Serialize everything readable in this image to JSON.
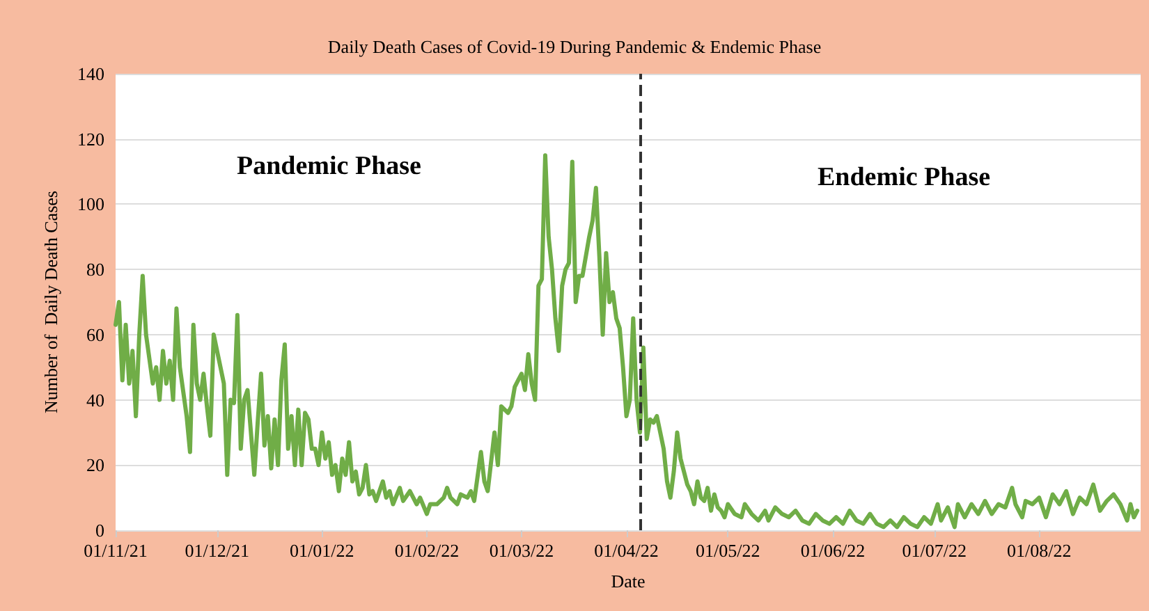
{
  "chart_data": {
    "type": "line",
    "title": "Daily Death Cases of Covid-19 During Pandemic & Endemic Phase",
    "xlabel": "Date",
    "ylabel": "Number of  Daily Death Cases",
    "x": [
      "2021-11-01",
      "2021-11-02",
      "2021-11-03",
      "2021-11-04",
      "2021-11-05",
      "2021-11-06",
      "2021-11-07",
      "2021-11-08",
      "2021-11-09",
      "2021-11-10",
      "2021-11-12",
      "2021-11-13",
      "2021-11-14",
      "2021-11-15",
      "2021-11-16",
      "2021-11-17",
      "2021-11-18",
      "2021-11-19",
      "2021-11-20",
      "2021-11-22",
      "2021-11-23",
      "2021-11-24",
      "2021-11-25",
      "2021-11-26",
      "2021-11-27",
      "2021-11-28",
      "2021-11-29",
      "2021-11-30",
      "2021-12-02",
      "2021-12-03",
      "2021-12-04",
      "2021-12-05",
      "2021-12-06",
      "2021-12-07",
      "2021-12-08",
      "2021-12-09",
      "2021-12-10",
      "2021-12-11",
      "2021-12-12",
      "2021-12-13",
      "2021-12-14",
      "2021-12-15",
      "2021-12-16",
      "2021-12-17",
      "2021-12-18",
      "2021-12-19",
      "2021-12-20",
      "2021-12-21",
      "2021-12-22",
      "2021-12-23",
      "2021-12-24",
      "2021-12-25",
      "2021-12-26",
      "2021-12-27",
      "2021-12-28",
      "2021-12-29",
      "2021-12-30",
      "2021-12-31",
      "2022-01-01",
      "2022-01-02",
      "2022-01-03",
      "2022-01-04",
      "2022-01-05",
      "2022-01-06",
      "2022-01-07",
      "2022-01-08",
      "2022-01-09",
      "2022-01-10",
      "2022-01-11",
      "2022-01-12",
      "2022-01-13",
      "2022-01-14",
      "2022-01-15",
      "2022-01-16",
      "2022-01-17",
      "2022-01-18",
      "2022-01-19",
      "2022-01-20",
      "2022-01-21",
      "2022-01-22",
      "2022-01-24",
      "2022-01-25",
      "2022-01-27",
      "2022-01-29",
      "2022-01-30",
      "2022-02-01",
      "2022-02-02",
      "2022-02-04",
      "2022-02-06",
      "2022-02-07",
      "2022-02-08",
      "2022-02-10",
      "2022-02-11",
      "2022-02-13",
      "2022-02-14",
      "2022-02-15",
      "2022-02-17",
      "2022-02-18",
      "2022-02-19",
      "2022-02-21",
      "2022-02-22",
      "2022-02-23",
      "2022-02-25",
      "2022-02-26",
      "2022-02-27",
      "2022-02-28",
      "2022-03-01",
      "2022-03-02",
      "2022-03-03",
      "2022-03-04",
      "2022-03-05",
      "2022-03-06",
      "2022-03-07",
      "2022-03-08",
      "2022-03-09",
      "2022-03-10",
      "2022-03-11",
      "2022-03-12",
      "2022-03-13",
      "2022-03-14",
      "2022-03-15",
      "2022-03-16",
      "2022-03-17",
      "2022-03-18",
      "2022-03-19",
      "2022-03-21",
      "2022-03-22",
      "2022-03-23",
      "2022-03-24",
      "2022-03-25",
      "2022-03-26",
      "2022-03-27",
      "2022-03-28",
      "2022-03-29",
      "2022-03-30",
      "2022-03-31",
      "2022-04-01",
      "2022-04-02",
      "2022-04-03",
      "2022-04-04",
      "2022-04-05",
      "2022-04-06",
      "2022-04-07",
      "2022-04-08",
      "2022-04-09",
      "2022-04-10",
      "2022-04-11",
      "2022-04-12",
      "2022-04-13",
      "2022-04-14",
      "2022-04-15",
      "2022-04-16",
      "2022-04-17",
      "2022-04-18",
      "2022-04-19",
      "2022-04-20",
      "2022-04-21",
      "2022-04-22",
      "2022-04-23",
      "2022-04-24",
      "2022-04-25",
      "2022-04-26",
      "2022-04-27",
      "2022-04-28",
      "2022-04-29",
      "2022-04-30",
      "2022-05-01",
      "2022-05-03",
      "2022-05-05",
      "2022-05-06",
      "2022-05-08",
      "2022-05-10",
      "2022-05-12",
      "2022-05-13",
      "2022-05-15",
      "2022-05-17",
      "2022-05-19",
      "2022-05-21",
      "2022-05-23",
      "2022-05-25",
      "2022-05-27",
      "2022-05-29",
      "2022-05-31",
      "2022-06-02",
      "2022-06-04",
      "2022-06-06",
      "2022-06-08",
      "2022-06-10",
      "2022-06-12",
      "2022-06-14",
      "2022-06-16",
      "2022-06-18",
      "2022-06-20",
      "2022-06-22",
      "2022-06-24",
      "2022-06-26",
      "2022-06-28",
      "2022-06-30",
      "2022-07-02",
      "2022-07-03",
      "2022-07-05",
      "2022-07-07",
      "2022-07-08",
      "2022-07-10",
      "2022-07-12",
      "2022-07-14",
      "2022-07-16",
      "2022-07-18",
      "2022-07-20",
      "2022-07-22",
      "2022-07-24",
      "2022-07-25",
      "2022-07-27",
      "2022-07-28",
      "2022-07-30",
      "2022-08-01",
      "2022-08-03",
      "2022-08-05",
      "2022-08-07",
      "2022-08-09",
      "2022-08-11",
      "2022-08-13",
      "2022-08-15",
      "2022-08-17",
      "2022-08-19",
      "2022-08-21",
      "2022-08-23",
      "2022-08-25",
      "2022-08-27",
      "2022-08-28",
      "2022-08-29",
      "2022-08-30"
    ],
    "series": [
      {
        "color": "#70ad47",
        "values": [
          63,
          70,
          46,
          63,
          45,
          55,
          35,
          60,
          78,
          60,
          45,
          50,
          40,
          55,
          45,
          52,
          40,
          68,
          50,
          35,
          24,
          63,
          45,
          40,
          48,
          38,
          29,
          60,
          50,
          45,
          17,
          40,
          39,
          66,
          25,
          40,
          43,
          30,
          17,
          33,
          48,
          26,
          35,
          19,
          34,
          20,
          46,
          57,
          25,
          35,
          20,
          37,
          20,
          36,
          34,
          25,
          25,
          20,
          30,
          22,
          27,
          17,
          20,
          12,
          22,
          17,
          27,
          15,
          18,
          11,
          13,
          20,
          11,
          12,
          9,
          12,
          15,
          10,
          12,
          8,
          13,
          9,
          12,
          8,
          10,
          5,
          8,
          8,
          10,
          13,
          10,
          8,
          11,
          10,
          12,
          9,
          24,
          15,
          12,
          30,
          20,
          38,
          36,
          38,
          44,
          46,
          48,
          43,
          54,
          45,
          40,
          75,
          77,
          115,
          90,
          80,
          65,
          55,
          75,
          80,
          82,
          113,
          70,
          78,
          78,
          90,
          95,
          105,
          84,
          60,
          85,
          70,
          73,
          65,
          62,
          50,
          35,
          40,
          65,
          40,
          30,
          56,
          28,
          34,
          33,
          35,
          30,
          25,
          15,
          10,
          18,
          30,
          22,
          18,
          14,
          12,
          8,
          15,
          10,
          9,
          13,
          6,
          11,
          7,
          6,
          4,
          8,
          5,
          4,
          8,
          5,
          3,
          6,
          3,
          7,
          5,
          4,
          6,
          3,
          2,
          5,
          3,
          2,
          4,
          2,
          6,
          3,
          2,
          5,
          2,
          1,
          3,
          1,
          4,
          2,
          1,
          4,
          2,
          8,
          3,
          7,
          1,
          8,
          4,
          8,
          5,
          9,
          5,
          8,
          7,
          13,
          8,
          4,
          9,
          8,
          10,
          4,
          11,
          8,
          12,
          5,
          10,
          8,
          14,
          6,
          9,
          11,
          8,
          3,
          8,
          4,
          6
        ]
      }
    ],
    "xlim": [
      "2021-11-01",
      "2022-08-31"
    ],
    "xticks": [
      {
        "value": "2021-11-01",
        "label": "01/11/21"
      },
      {
        "value": "2021-12-01",
        "label": "01/12/21"
      },
      {
        "value": "2022-01-01",
        "label": "01/01/22"
      },
      {
        "value": "2022-02-01",
        "label": "01/02/22"
      },
      {
        "value": "2022-03-01",
        "label": "01/03/22"
      },
      {
        "value": "2022-04-01",
        "label": "01/04/22"
      },
      {
        "value": "2022-05-01",
        "label": "01/05/22"
      },
      {
        "value": "2022-06-01",
        "label": "01/06/22"
      },
      {
        "value": "2022-07-01",
        "label": "01/07/22"
      },
      {
        "value": "2022-08-01",
        "label": "01/08/22"
      }
    ],
    "ylim": [
      0,
      140
    ],
    "yticks": [
      0,
      20,
      40,
      60,
      80,
      100,
      120,
      140
    ],
    "grid": "y",
    "marker": "none",
    "line_style": "solid",
    "ref_lines": [
      {
        "axis": "x",
        "value": "2022-04-05",
        "label": null,
        "color": "#333333",
        "line_style": "dashed"
      }
    ],
    "annotations": [
      "Pandemic Phase",
      "Endemic Phase"
    ]
  }
}
